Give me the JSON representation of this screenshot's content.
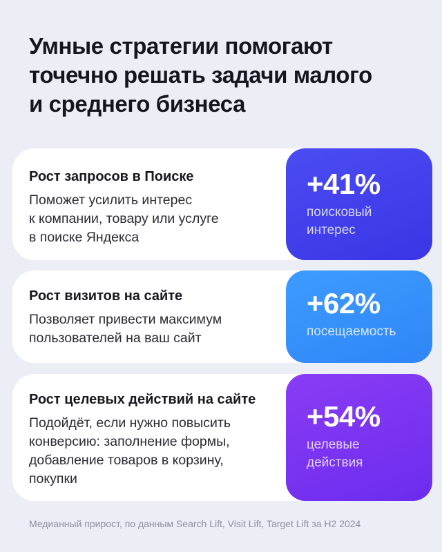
{
  "title": {
    "line1": "Умные стратегии помогают",
    "line2": "точечно решать задачи малого",
    "line3": "и среднего бизнеса"
  },
  "cards": [
    {
      "heading": "Рост запросов в Поиске",
      "desc_lines": [
        "Поможет усилить интерес",
        "к компании, товару или услуге",
        "в поиске Яндекса"
      ],
      "stat_value": "+41%",
      "stat_label_lines": [
        "поисковый",
        "интерес"
      ],
      "color": "#3f3ef0"
    },
    {
      "heading": "Рост визитов на сайте",
      "desc_lines": [
        "Позволяет привести максимум",
        "пользователей на ваш сайт"
      ],
      "stat_value": "+62%",
      "stat_label_lines": [
        "посещаемость"
      ],
      "color": "#3591fb"
    },
    {
      "heading": "Рост целевых действий на сайте",
      "desc_lines": [
        "Подойдёт, если нужно повысить",
        "конверсию: заполнение формы,",
        "добавление товаров в корзину,",
        "покупки"
      ],
      "stat_value": "+54%",
      "stat_label_lines": [
        "целевые",
        "действия"
      ],
      "color": "#7a33f1"
    }
  ],
  "footnote": "Медианный прирост, по данным Search Lift, Visit Lift, Target Lift за H2 2024"
}
